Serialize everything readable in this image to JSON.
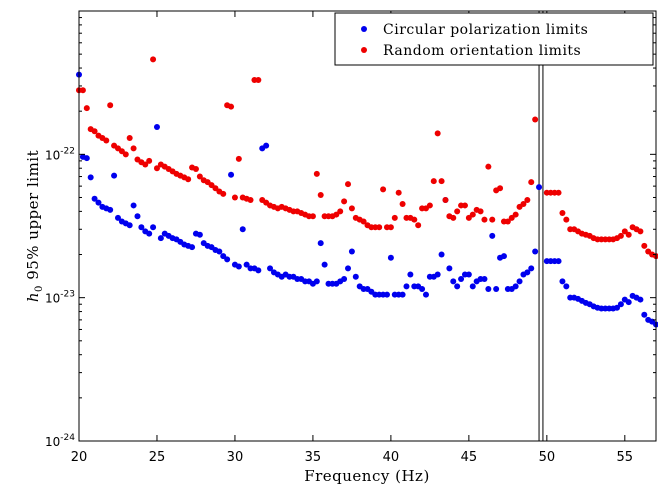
{
  "chart_data": {
    "type": "scatter",
    "xlabel": "Frequency (Hz)",
    "ylabel_var": "h",
    "ylabel_sub": "0",
    "ylabel_rest": " 95% upper limit",
    "xlim": [
      20,
      57
    ],
    "ylim": [
      1e-24,
      1e-21
    ],
    "yscale": "log",
    "xticks": [
      20,
      25,
      30,
      35,
      40,
      45,
      50,
      55
    ],
    "yticks": [
      {
        "value": 1e-24,
        "base": "10",
        "exp": "-24"
      },
      {
        "value": 1e-23,
        "base": "10",
        "exp": "-23"
      },
      {
        "value": 1e-22,
        "base": "10",
        "exp": "-22"
      }
    ],
    "vertical_lines": [
      49.5,
      49.75
    ],
    "legend_position": "top-right",
    "series": [
      {
        "name": "Circular polarization limits",
        "color": "#0000ee",
        "points": [
          [
            20.0,
            3.6e-22
          ],
          [
            20.25,
            9.6e-23
          ],
          [
            20.5,
            9.4e-23
          ],
          [
            20.75,
            6.9e-23
          ],
          [
            21.0,
            4.9e-23
          ],
          [
            21.25,
            4.6e-23
          ],
          [
            21.5,
            4.3e-23
          ],
          [
            21.75,
            4.2e-23
          ],
          [
            22.0,
            4.1e-23
          ],
          [
            22.25,
            7.1e-23
          ],
          [
            22.5,
            3.6e-23
          ],
          [
            22.75,
            3.4e-23
          ],
          [
            23.0,
            3.3e-23
          ],
          [
            23.25,
            3.2e-23
          ],
          [
            23.5,
            4.4e-23
          ],
          [
            23.75,
            3.7e-23
          ],
          [
            24.0,
            3.1e-23
          ],
          [
            24.25,
            2.9e-23
          ],
          [
            24.5,
            2.8e-23
          ],
          [
            24.75,
            3.1e-23
          ],
          [
            25.0,
            1.55e-22
          ],
          [
            25.25,
            2.6e-23
          ],
          [
            25.5,
            2.8e-23
          ],
          [
            25.75,
            2.7e-23
          ],
          [
            26.0,
            2.6e-23
          ],
          [
            26.25,
            2.55e-23
          ],
          [
            26.5,
            2.45e-23
          ],
          [
            26.75,
            2.35e-23
          ],
          [
            27.0,
            2.3e-23
          ],
          [
            27.25,
            2.25e-23
          ],
          [
            27.5,
            2.8e-23
          ],
          [
            27.75,
            2.75e-23
          ],
          [
            28.0,
            2.4e-23
          ],
          [
            28.25,
            2.3e-23
          ],
          [
            28.5,
            2.25e-23
          ],
          [
            28.75,
            2.15e-23
          ],
          [
            29.0,
            2.1e-23
          ],
          [
            29.25,
            1.95e-23
          ],
          [
            29.5,
            1.85e-23
          ],
          [
            29.75,
            7.2e-23
          ],
          [
            30.0,
            1.7e-23
          ],
          [
            30.25,
            1.65e-23
          ],
          [
            30.5,
            3e-23
          ],
          [
            30.75,
            1.7e-23
          ],
          [
            31.0,
            1.6e-23
          ],
          [
            31.25,
            1.6e-23
          ],
          [
            31.5,
            1.55e-23
          ],
          [
            31.75,
            1.1e-22
          ],
          [
            32.0,
            1.15e-22
          ],
          [
            32.25,
            1.6e-23
          ],
          [
            32.5,
            1.5e-23
          ],
          [
            32.75,
            1.45e-23
          ],
          [
            33.0,
            1.4e-23
          ],
          [
            33.25,
            1.45e-23
          ],
          [
            33.5,
            1.4e-23
          ],
          [
            33.75,
            1.4e-23
          ],
          [
            34.0,
            1.35e-23
          ],
          [
            34.25,
            1.35e-23
          ],
          [
            34.5,
            1.3e-23
          ],
          [
            34.75,
            1.3e-23
          ],
          [
            35.0,
            1.25e-23
          ],
          [
            35.25,
            1.3e-23
          ],
          [
            35.5,
            2.4e-23
          ],
          [
            35.75,
            1.7e-23
          ],
          [
            36.0,
            1.25e-23
          ],
          [
            36.25,
            1.25e-23
          ],
          [
            36.5,
            1.25e-23
          ],
          [
            36.75,
            1.3e-23
          ],
          [
            37.0,
            1.35e-23
          ],
          [
            37.25,
            1.6e-23
          ],
          [
            37.5,
            2.1e-23
          ],
          [
            37.75,
            1.4e-23
          ],
          [
            38.0,
            1.2e-23
          ],
          [
            38.25,
            1.15e-23
          ],
          [
            38.5,
            1.15e-23
          ],
          [
            38.75,
            1.1e-23
          ],
          [
            39.0,
            1.05e-23
          ],
          [
            39.25,
            1.05e-23
          ],
          [
            39.5,
            1.05e-23
          ],
          [
            39.75,
            1.05e-23
          ],
          [
            40.0,
            1.9e-23
          ],
          [
            40.25,
            1.05e-23
          ],
          [
            40.5,
            1.05e-23
          ],
          [
            40.75,
            1.05e-23
          ],
          [
            41.0,
            1.2e-23
          ],
          [
            41.25,
            1.45e-23
          ],
          [
            41.5,
            1.2e-23
          ],
          [
            41.75,
            1.2e-23
          ],
          [
            42.0,
            1.15e-23
          ],
          [
            42.25,
            1.05e-23
          ],
          [
            42.5,
            1.4e-23
          ],
          [
            42.75,
            1.4e-23
          ],
          [
            43.0,
            1.45e-23
          ],
          [
            43.25,
            2e-23
          ],
          [
            43.5,
            4.8e-23
          ],
          [
            43.75,
            1.6e-23
          ],
          [
            44.0,
            1.3e-23
          ],
          [
            44.25,
            1.2e-23
          ],
          [
            44.5,
            1.35e-23
          ],
          [
            44.75,
            1.45e-23
          ],
          [
            45.0,
            1.45e-23
          ],
          [
            45.25,
            1.2e-23
          ],
          [
            45.5,
            1.3e-23
          ],
          [
            45.75,
            1.35e-23
          ],
          [
            46.0,
            1.35e-23
          ],
          [
            46.25,
            1.15e-23
          ],
          [
            46.5,
            2.7e-23
          ],
          [
            46.75,
            1.15e-23
          ],
          [
            47.0,
            1.9e-23
          ],
          [
            47.25,
            1.95e-23
          ],
          [
            47.5,
            1.15e-23
          ],
          [
            47.75,
            1.15e-23
          ],
          [
            48.0,
            1.2e-23
          ],
          [
            48.25,
            1.3e-23
          ],
          [
            48.5,
            1.45e-23
          ],
          [
            48.75,
            1.5e-23
          ],
          [
            49.0,
            1.6e-23
          ],
          [
            49.25,
            2.1e-23
          ],
          [
            49.5,
            5.9e-23
          ],
          [
            50.0,
            1.8e-23
          ],
          [
            50.25,
            1.8e-23
          ],
          [
            50.5,
            1.8e-23
          ],
          [
            50.75,
            1.8e-23
          ],
          [
            51.0,
            1.3e-23
          ],
          [
            51.25,
            1.2e-23
          ],
          [
            51.5,
            1e-23
          ],
          [
            51.75,
            1e-23
          ],
          [
            52.0,
            9.8e-24
          ],
          [
            52.25,
            9.5e-24
          ],
          [
            52.5,
            9.2e-24
          ],
          [
            52.75,
            9e-24
          ],
          [
            53.0,
            8.7e-24
          ],
          [
            53.25,
            8.5e-24
          ],
          [
            53.5,
            8.4e-24
          ],
          [
            53.75,
            8.4e-24
          ],
          [
            54.0,
            8.4e-24
          ],
          [
            54.25,
            8.4e-24
          ],
          [
            54.5,
            8.5e-24
          ],
          [
            54.75,
            9e-24
          ],
          [
            55.0,
            9.7e-24
          ],
          [
            55.25,
            9.3e-24
          ],
          [
            55.5,
            1.03e-23
          ],
          [
            55.75,
            1e-23
          ],
          [
            56.0,
            9.7e-24
          ],
          [
            56.25,
            7.6e-24
          ],
          [
            56.5,
            7e-24
          ],
          [
            56.75,
            6.8e-24
          ],
          [
            57.0,
            6.5e-24
          ]
        ]
      },
      {
        "name": "Random orientation limits",
        "color": "#ee0000",
        "points": [
          [
            20.0,
            2.8e-22
          ],
          [
            20.25,
            2.8e-22
          ],
          [
            20.5,
            2.1e-22
          ],
          [
            20.75,
            1.5e-22
          ],
          [
            21.0,
            1.45e-22
          ],
          [
            21.25,
            1.35e-22
          ],
          [
            21.5,
            1.3e-22
          ],
          [
            21.75,
            1.25e-22
          ],
          [
            22.0,
            2.2e-22
          ],
          [
            22.25,
            1.15e-22
          ],
          [
            22.5,
            1.1e-22
          ],
          [
            22.75,
            1.05e-22
          ],
          [
            23.0,
            1e-22
          ],
          [
            23.25,
            1.3e-22
          ],
          [
            23.5,
            1.1e-22
          ],
          [
            23.75,
            9.2e-23
          ],
          [
            24.0,
            8.8e-23
          ],
          [
            24.25,
            8.5e-23
          ],
          [
            24.5,
            9e-23
          ],
          [
            24.75,
            4.6e-22
          ],
          [
            25.0,
            8e-23
          ],
          [
            25.25,
            8.5e-23
          ],
          [
            25.5,
            8.2e-23
          ],
          [
            25.75,
            7.9e-23
          ],
          [
            26.0,
            7.6e-23
          ],
          [
            26.25,
            7.3e-23
          ],
          [
            26.5,
            7.1e-23
          ],
          [
            26.75,
            6.9e-23
          ],
          [
            27.0,
            6.7e-23
          ],
          [
            27.25,
            8.1e-23
          ],
          [
            27.5,
            7.9e-23
          ],
          [
            27.75,
            7e-23
          ],
          [
            28.0,
            6.6e-23
          ],
          [
            28.25,
            6.4e-23
          ],
          [
            28.5,
            6.1e-23
          ],
          [
            28.75,
            5.8e-23
          ],
          [
            29.0,
            5.5e-23
          ],
          [
            29.25,
            5.3e-23
          ],
          [
            29.5,
            2.2e-22
          ],
          [
            29.75,
            2.15e-22
          ],
          [
            30.0,
            5e-23
          ],
          [
            30.25,
            9.3e-23
          ],
          [
            30.5,
            5e-23
          ],
          [
            30.75,
            4.9e-23
          ],
          [
            31.0,
            4.8e-23
          ],
          [
            31.25,
            3.3e-22
          ],
          [
            31.5,
            3.3e-22
          ],
          [
            31.75,
            4.8e-23
          ],
          [
            32.0,
            4.6e-23
          ],
          [
            32.25,
            4.4e-23
          ],
          [
            32.5,
            4.3e-23
          ],
          [
            32.75,
            4.2e-23
          ],
          [
            33.0,
            4.3e-23
          ],
          [
            33.25,
            4.2e-23
          ],
          [
            33.5,
            4.1e-23
          ],
          [
            33.75,
            4e-23
          ],
          [
            34.0,
            4e-23
          ],
          [
            34.25,
            3.9e-23
          ],
          [
            34.5,
            3.8e-23
          ],
          [
            34.75,
            3.7e-23
          ],
          [
            35.0,
            3.7e-23
          ],
          [
            35.25,
            7.3e-23
          ],
          [
            35.5,
            5.2e-23
          ],
          [
            35.75,
            3.7e-23
          ],
          [
            36.0,
            3.7e-23
          ],
          [
            36.25,
            3.7e-23
          ],
          [
            36.5,
            3.8e-23
          ],
          [
            36.75,
            4e-23
          ],
          [
            37.0,
            4.7e-23
          ],
          [
            37.25,
            6.2e-23
          ],
          [
            37.5,
            4.2e-23
          ],
          [
            37.75,
            3.6e-23
          ],
          [
            38.0,
            3.5e-23
          ],
          [
            38.25,
            3.4e-23
          ],
          [
            38.5,
            3.2e-23
          ],
          [
            38.75,
            3.1e-23
          ],
          [
            39.0,
            3.1e-23
          ],
          [
            39.25,
            3.1e-23
          ],
          [
            39.5,
            5.7e-23
          ],
          [
            39.75,
            3.1e-23
          ],
          [
            40.0,
            3.1e-23
          ],
          [
            40.25,
            3.6e-23
          ],
          [
            40.5,
            5.4e-23
          ],
          [
            40.75,
            4.5e-23
          ],
          [
            41.0,
            3.6e-23
          ],
          [
            41.25,
            3.6e-23
          ],
          [
            41.5,
            3.5e-23
          ],
          [
            41.75,
            3.2e-23
          ],
          [
            42.0,
            4.2e-23
          ],
          [
            42.25,
            4.2e-23
          ],
          [
            42.5,
            4.4e-23
          ],
          [
            42.75,
            6.5e-23
          ],
          [
            43.0,
            1.4e-22
          ],
          [
            43.25,
            6.5e-23
          ],
          [
            43.5,
            4.8e-23
          ],
          [
            43.75,
            3.7e-23
          ],
          [
            44.0,
            3.6e-23
          ],
          [
            44.25,
            4e-23
          ],
          [
            44.5,
            4.4e-23
          ],
          [
            44.75,
            4.4e-23
          ],
          [
            45.0,
            3.6e-23
          ],
          [
            45.25,
            3.8e-23
          ],
          [
            45.5,
            4.1e-23
          ],
          [
            45.75,
            4e-23
          ],
          [
            46.0,
            3.5e-23
          ],
          [
            46.25,
            8.2e-23
          ],
          [
            46.5,
            3.5e-23
          ],
          [
            46.75,
            5.6e-23
          ],
          [
            47.0,
            5.8e-23
          ],
          [
            47.25,
            3.4e-23
          ],
          [
            47.5,
            3.4e-23
          ],
          [
            47.75,
            3.6e-23
          ],
          [
            48.0,
            3.8e-23
          ],
          [
            48.25,
            4.3e-23
          ],
          [
            48.5,
            4.5e-23
          ],
          [
            48.75,
            4.8e-23
          ],
          [
            49.0,
            6.4e-23
          ],
          [
            49.25,
            1.75e-22
          ],
          [
            50.0,
            5.4e-23
          ],
          [
            50.25,
            5.4e-23
          ],
          [
            50.5,
            5.4e-23
          ],
          [
            50.75,
            5.4e-23
          ],
          [
            51.0,
            3.9e-23
          ],
          [
            51.25,
            3.5e-23
          ],
          [
            51.5,
            3e-23
          ],
          [
            51.75,
            3e-23
          ],
          [
            52.0,
            2.9e-23
          ],
          [
            52.25,
            2.8e-23
          ],
          [
            52.5,
            2.75e-23
          ],
          [
            52.75,
            2.7e-23
          ],
          [
            53.0,
            2.6e-23
          ],
          [
            53.25,
            2.55e-23
          ],
          [
            53.5,
            2.55e-23
          ],
          [
            53.75,
            2.55e-23
          ],
          [
            54.0,
            2.55e-23
          ],
          [
            54.25,
            2.55e-23
          ],
          [
            54.5,
            2.6e-23
          ],
          [
            54.75,
            2.7e-23
          ],
          [
            55.0,
            2.9e-23
          ],
          [
            55.25,
            2.75e-23
          ],
          [
            55.5,
            3.1e-23
          ],
          [
            55.75,
            3e-23
          ],
          [
            56.0,
            2.9e-23
          ],
          [
            56.25,
            2.3e-23
          ],
          [
            56.5,
            2.1e-23
          ],
          [
            56.75,
            2e-23
          ],
          [
            57.0,
            1.95e-23
          ]
        ]
      }
    ]
  }
}
